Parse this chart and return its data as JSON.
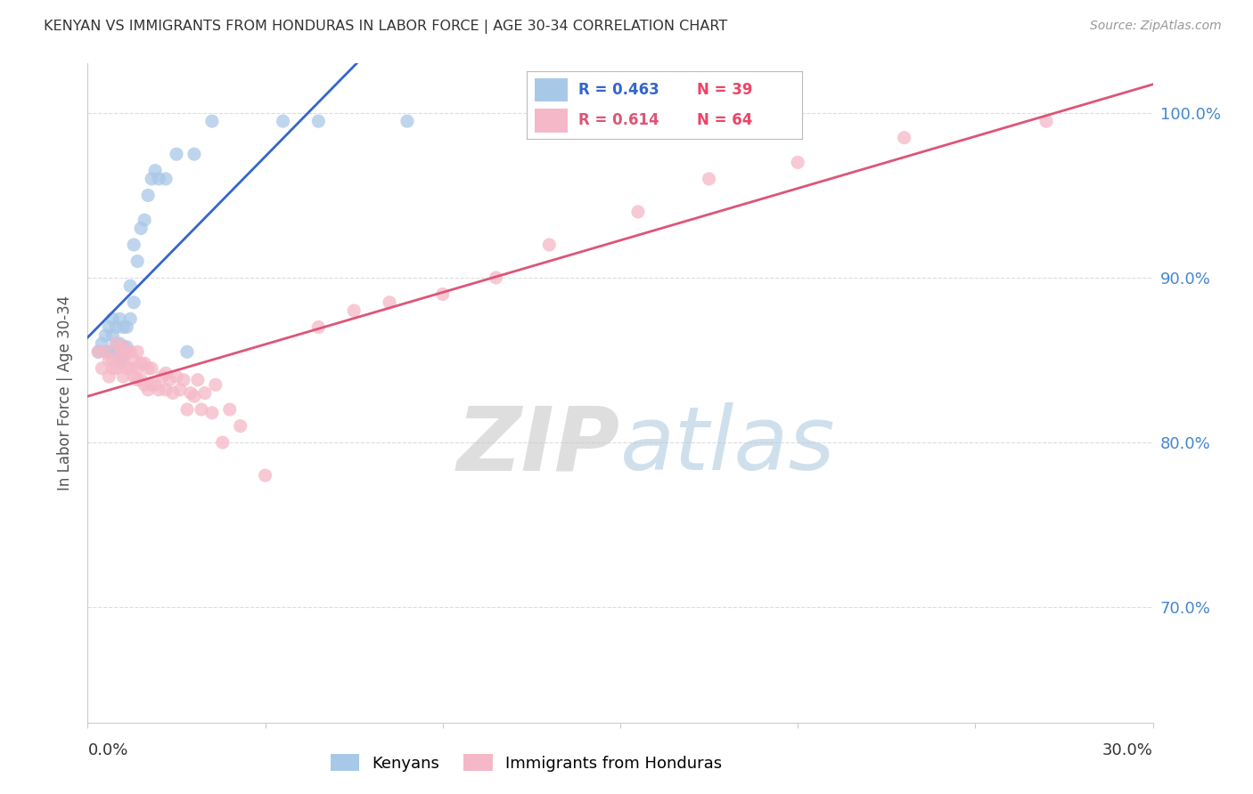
{
  "title": "KENYAN VS IMMIGRANTS FROM HONDURAS IN LABOR FORCE | AGE 30-34 CORRELATION CHART",
  "source": "Source: ZipAtlas.com",
  "ylabel": "In Labor Force | Age 30-34",
  "right_yticks": [
    0.7,
    0.8,
    0.9,
    1.0
  ],
  "right_yticklabels": [
    "70.0%",
    "80.0%",
    "90.0%",
    "100.0%"
  ],
  "xlim": [
    0.0,
    0.3
  ],
  "ylim": [
    0.63,
    1.03
  ],
  "legend_blue_R": "0.463",
  "legend_blue_N": "39",
  "legend_pink_R": "0.614",
  "legend_pink_N": "64",
  "blue_color": "#a8c8e8",
  "pink_color": "#f5b8c8",
  "blue_line_color": "#3366cc",
  "pink_line_color": "#dd5577",
  "blue_scatter_edge": "none",
  "pink_scatter_edge": "none",
  "watermark_zip": "ZIP",
  "watermark_atlas": "atlas",
  "watermark_color_zip": "#c0c0c0",
  "watermark_color_atlas": "#a0c0e0",
  "grid_color": "#dddddd",
  "spine_color": "#cccccc",
  "right_label_color": "#4488cc",
  "title_color": "#333333",
  "source_color": "#999999",
  "blue_points_x": [
    0.003,
    0.004,
    0.005,
    0.005,
    0.006,
    0.006,
    0.007,
    0.007,
    0.007,
    0.008,
    0.008,
    0.008,
    0.009,
    0.009,
    0.009,
    0.01,
    0.01,
    0.01,
    0.011,
    0.011,
    0.012,
    0.012,
    0.013,
    0.013,
    0.014,
    0.015,
    0.016,
    0.017,
    0.018,
    0.019,
    0.02,
    0.022,
    0.025,
    0.028,
    0.03,
    0.035,
    0.055,
    0.065,
    0.09
  ],
  "blue_points_y": [
    0.855,
    0.86,
    0.855,
    0.865,
    0.855,
    0.87,
    0.855,
    0.865,
    0.875,
    0.855,
    0.86,
    0.87,
    0.85,
    0.86,
    0.875,
    0.852,
    0.858,
    0.87,
    0.858,
    0.87,
    0.875,
    0.895,
    0.885,
    0.92,
    0.91,
    0.93,
    0.935,
    0.95,
    0.96,
    0.965,
    0.96,
    0.96,
    0.975,
    0.855,
    0.975,
    0.995,
    0.995,
    0.995,
    0.995
  ],
  "pink_points_x": [
    0.003,
    0.004,
    0.005,
    0.006,
    0.006,
    0.007,
    0.007,
    0.008,
    0.008,
    0.009,
    0.009,
    0.01,
    0.01,
    0.01,
    0.011,
    0.011,
    0.012,
    0.012,
    0.013,
    0.013,
    0.014,
    0.014,
    0.014,
    0.015,
    0.015,
    0.016,
    0.016,
    0.017,
    0.017,
    0.018,
    0.018,
    0.019,
    0.02,
    0.021,
    0.022,
    0.022,
    0.023,
    0.024,
    0.025,
    0.026,
    0.027,
    0.028,
    0.029,
    0.03,
    0.031,
    0.032,
    0.033,
    0.035,
    0.036,
    0.038,
    0.04,
    0.043,
    0.05,
    0.065,
    0.075,
    0.085,
    0.1,
    0.115,
    0.13,
    0.155,
    0.175,
    0.2,
    0.23,
    0.27
  ],
  "pink_points_y": [
    0.855,
    0.845,
    0.855,
    0.85,
    0.84,
    0.85,
    0.845,
    0.845,
    0.86,
    0.848,
    0.855,
    0.84,
    0.852,
    0.858,
    0.845,
    0.855,
    0.845,
    0.855,
    0.84,
    0.85,
    0.838,
    0.845,
    0.855,
    0.838,
    0.848,
    0.835,
    0.848,
    0.832,
    0.845,
    0.835,
    0.845,
    0.835,
    0.832,
    0.84,
    0.832,
    0.842,
    0.838,
    0.83,
    0.84,
    0.832,
    0.838,
    0.82,
    0.83,
    0.828,
    0.838,
    0.82,
    0.83,
    0.818,
    0.835,
    0.8,
    0.82,
    0.81,
    0.78,
    0.87,
    0.88,
    0.885,
    0.89,
    0.9,
    0.92,
    0.94,
    0.96,
    0.97,
    0.985,
    0.995
  ]
}
